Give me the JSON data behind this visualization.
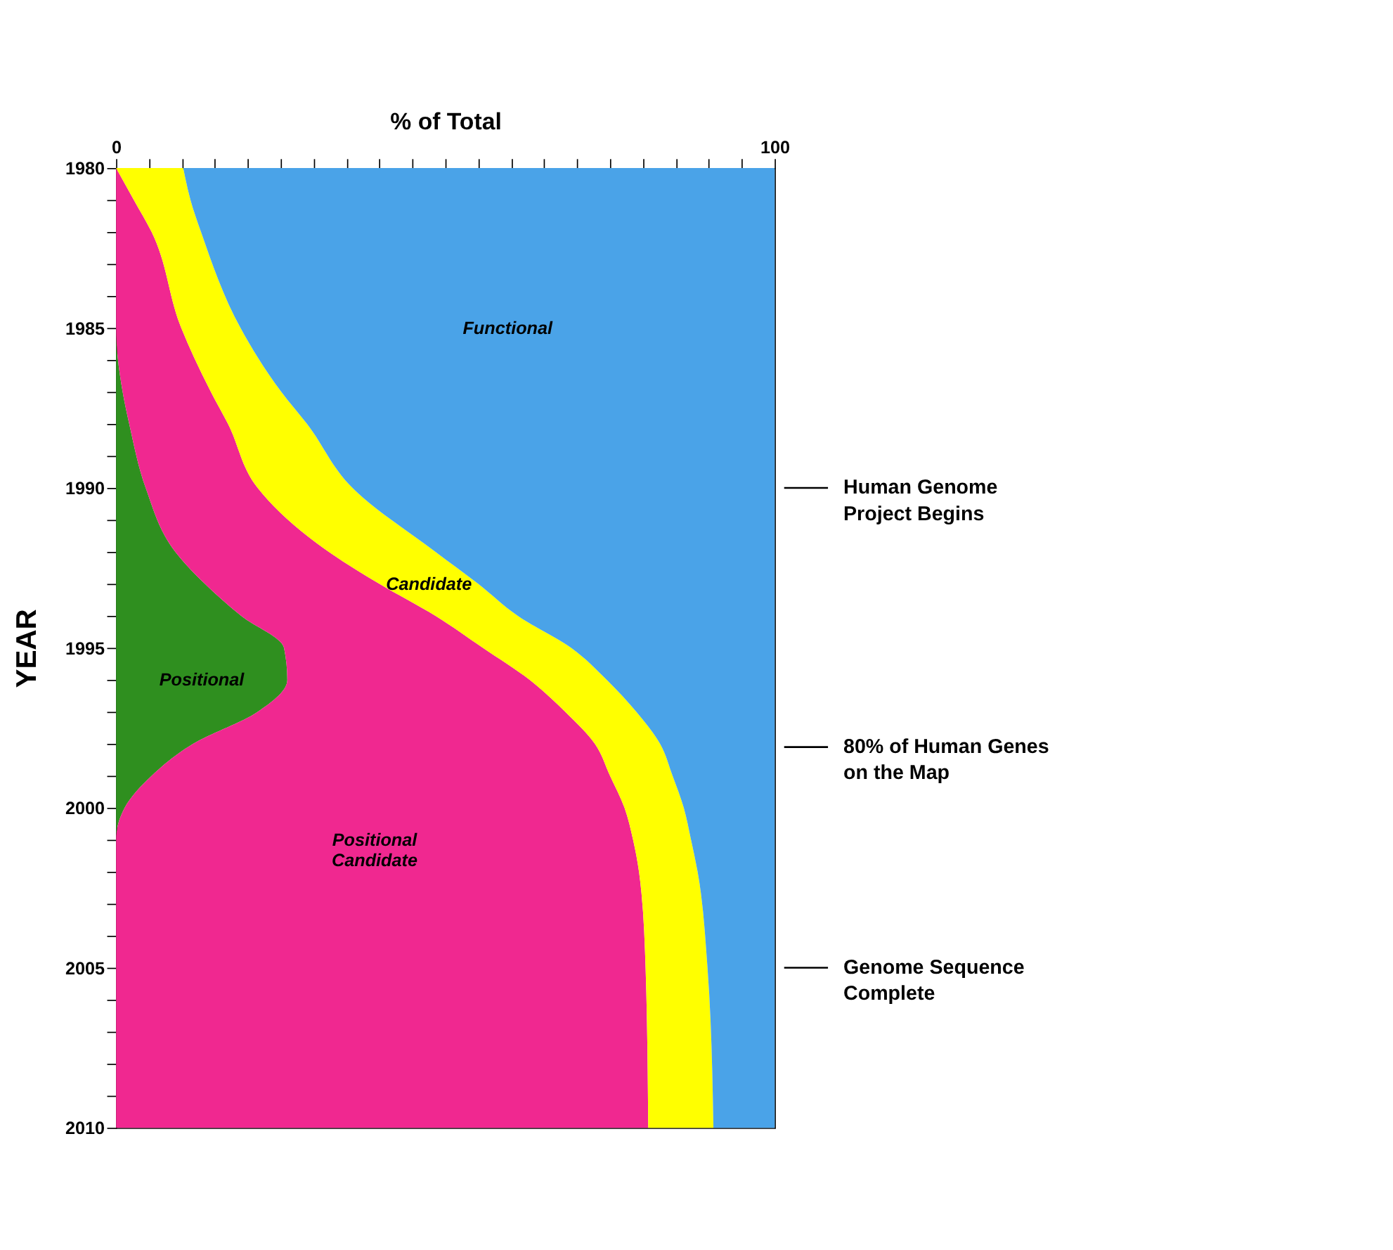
{
  "chart_data": {
    "type": "area",
    "stacked": true,
    "orientation": "horizontal",
    "xlabel": "% of Total",
    "ylabel": "YEAR",
    "x": [
      1980,
      1981,
      1982,
      1985,
      1987,
      1988,
      1990,
      1992,
      1993,
      1994,
      1995,
      1996,
      1997,
      1998,
      1999,
      2000,
      2001,
      2002,
      2005,
      2010
    ],
    "series": [
      {
        "name": "Positional",
        "color": "#2f8f1f",
        "values": [
          0,
          0,
          0,
          0,
          1,
          2,
          4.5,
          9,
          13.5,
          19,
          25.5,
          26,
          21.5,
          11.7,
          5.4,
          1.3,
          0,
          0,
          0,
          0
        ]
      },
      {
        "name": "Positional Candidate",
        "color": "#f02890",
        "values": [
          0,
          2.7,
          5.4,
          9.9,
          13.4,
          15,
          17,
          23.3,
          26.5,
          29.5,
          30.2,
          36.8,
          46.7,
          61,
          69.6,
          75.9,
          78.5,
          79.4,
          80.4,
          80.8
        ]
      },
      {
        "name": "Candidate",
        "color": "#ffff00",
        "values": [
          10.2,
          8.6,
          7.5,
          9,
          10.7,
          12,
          14.4,
          16.2,
          15,
          12.5,
          13.4,
          11.7,
          10.8,
          9.9,
          9.5,
          9,
          8.8,
          8.9,
          9.4,
          9.9
        ]
      },
      {
        "name": "Functional",
        "color": "#4aa3e8",
        "values": [
          89.8,
          88.7,
          87.1,
          81.1,
          74.9,
          71,
          64.1,
          51.5,
          45,
          39,
          30.9,
          25.5,
          21,
          17.4,
          15.5,
          13.8,
          12.7,
          11.7,
          10.2,
          9.3
        ]
      }
    ],
    "xlim": [
      0,
      100
    ],
    "xticks": [
      0,
      {
        "value": 5,
        "label": null
      },
      {
        "value": 10,
        "label": null
      },
      {
        "value": 15,
        "label": null
      },
      {
        "value": 20,
        "label": null
      },
      {
        "value": 25,
        "label": null
      },
      {
        "value": 30,
        "label": null
      },
      {
        "value": 35,
        "label": null
      },
      {
        "value": 40,
        "label": null
      },
      {
        "value": 45,
        "label": null
      },
      {
        "value": 50,
        "label": null
      },
      {
        "value": 55,
        "label": null
      },
      {
        "value": 60,
        "label": null
      },
      {
        "value": 65,
        "label": null
      },
      {
        "value": 70,
        "label": null
      },
      {
        "value": 75,
        "label": null
      },
      {
        "value": 80,
        "label": null
      },
      {
        "value": 85,
        "label": null
      },
      {
        "value": 90,
        "label": null
      },
      {
        "value": 95,
        "label": null
      },
      100
    ],
    "ylim": [
      2010,
      1980
    ],
    "yticks": [
      1980,
      {
        "value": 1981,
        "label": null
      },
      {
        "value": 1982,
        "label": null
      },
      {
        "value": 1983,
        "label": null
      },
      {
        "value": 1984,
        "label": null
      },
      1985,
      {
        "value": 1986,
        "label": null
      },
      {
        "value": 1987,
        "label": null
      },
      {
        "value": 1988,
        "label": null
      },
      {
        "value": 1989,
        "label": null
      },
      1990,
      {
        "value": 1991,
        "label": null
      },
      {
        "value": 1992,
        "label": null
      },
      {
        "value": 1993,
        "label": null
      },
      {
        "value": 1994,
        "label": null
      },
      1995,
      {
        "value": 1996,
        "label": null
      },
      {
        "value": 1997,
        "label": null
      },
      {
        "value": 1998,
        "label": null
      },
      {
        "value": 1999,
        "label": null
      },
      2000,
      {
        "value": 2001,
        "label": null
      },
      {
        "value": 2002,
        "label": null
      },
      {
        "value": 2003,
        "label": null
      },
      {
        "value": 2004,
        "label": null
      },
      2005,
      {
        "value": 2006,
        "label": null
      },
      {
        "value": 2007,
        "label": null
      },
      {
        "value": 2008,
        "label": null
      },
      {
        "value": 2009,
        "label": null
      },
      2010
    ],
    "ref_lines": [
      {
        "axis": "y",
        "value": 1990,
        "label": "Human Genome Project Begins"
      },
      {
        "axis": "y",
        "value": 1998.1,
        "label": "80% of Human Genes on the Map"
      },
      {
        "axis": "y",
        "value": 2005,
        "label": "Genome Sequence Complete"
      }
    ],
    "grid": false,
    "legend": false
  }
}
